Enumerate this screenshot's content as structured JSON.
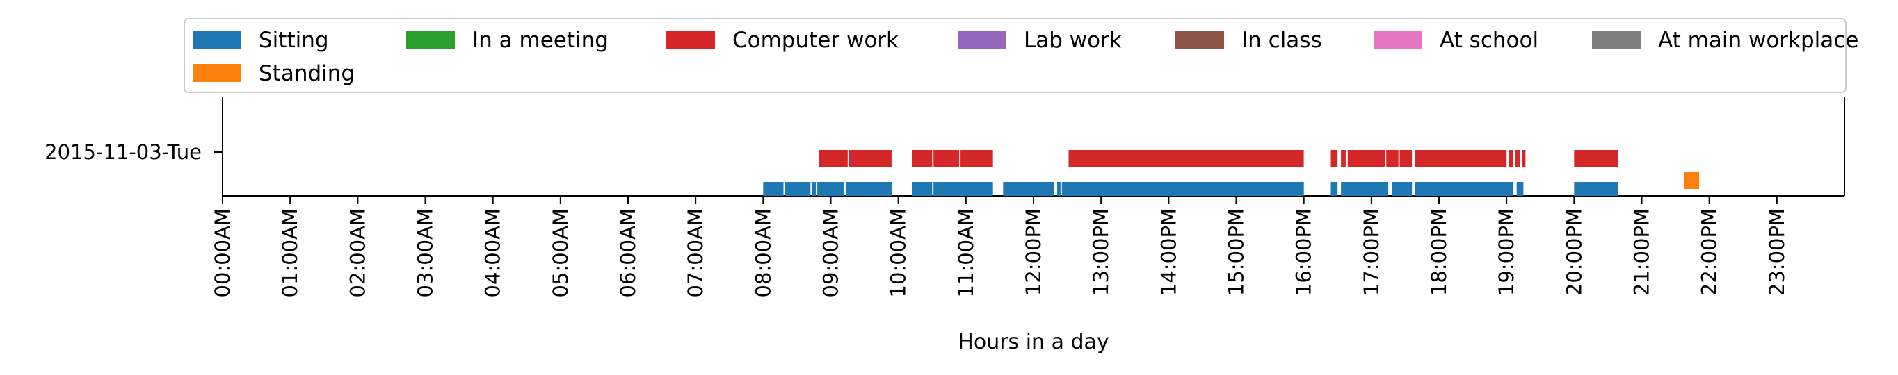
{
  "chart_data": {
    "type": "timeline",
    "title": "",
    "xlabel": "Hours in a day",
    "ylabel": "",
    "xlim": [
      0,
      24
    ],
    "x_ticks": [
      {
        "value": 0,
        "label": "00:00AM"
      },
      {
        "value": 1,
        "label": "01:00AM"
      },
      {
        "value": 2,
        "label": "02:00AM"
      },
      {
        "value": 3,
        "label": "03:00AM"
      },
      {
        "value": 4,
        "label": "04:00AM"
      },
      {
        "value": 5,
        "label": "05:00AM"
      },
      {
        "value": 6,
        "label": "06:00AM"
      },
      {
        "value": 7,
        "label": "07:00AM"
      },
      {
        "value": 8,
        "label": "08:00AM"
      },
      {
        "value": 9,
        "label": "09:00AM"
      },
      {
        "value": 10,
        "label": "10:00AM"
      },
      {
        "value": 11,
        "label": "11:00AM"
      },
      {
        "value": 12,
        "label": "12:00PM"
      },
      {
        "value": 13,
        "label": "13:00PM"
      },
      {
        "value": 14,
        "label": "14:00PM"
      },
      {
        "value": 15,
        "label": "15:00PM"
      },
      {
        "value": 16,
        "label": "16:00PM"
      },
      {
        "value": 17,
        "label": "17:00PM"
      },
      {
        "value": 18,
        "label": "18:00PM"
      },
      {
        "value": 19,
        "label": "19:00PM"
      },
      {
        "value": 20,
        "label": "20:00PM"
      },
      {
        "value": 21,
        "label": "21:00PM"
      },
      {
        "value": 22,
        "label": "22:00PM"
      },
      {
        "value": 23,
        "label": "23:00PM"
      }
    ],
    "y_ticks": [
      "2015-11-03-Tue"
    ],
    "legend_position": "top",
    "legend": [
      {
        "name": "Sitting",
        "color": "#1f77b4"
      },
      {
        "name": "In a meeting",
        "color": "#2ca02c"
      },
      {
        "name": "Computer work",
        "color": "#d62728"
      },
      {
        "name": "Lab work",
        "color": "#9467bd"
      },
      {
        "name": "In class",
        "color": "#8c564b"
      },
      {
        "name": "At school",
        "color": "#e377c2"
      },
      {
        "name": "At main workplace",
        "color": "#7f7f7f"
      },
      {
        "name": "Standing",
        "color": "#ff7f0e"
      }
    ],
    "series": [
      {
        "name": "Sitting",
        "color": "#1f77b4",
        "intervals": [
          [
            8.0,
            8.3
          ],
          [
            8.32,
            8.7
          ],
          [
            8.72,
            8.78
          ],
          [
            8.8,
            9.2
          ],
          [
            9.22,
            9.9
          ],
          [
            10.2,
            10.5
          ],
          [
            10.52,
            11.4
          ],
          [
            11.55,
            12.3
          ],
          [
            12.35,
            12.4
          ],
          [
            12.42,
            16.0
          ],
          [
            16.4,
            16.5
          ],
          [
            16.55,
            17.25
          ],
          [
            17.3,
            17.6
          ],
          [
            17.65,
            19.1
          ],
          [
            19.15,
            19.25
          ],
          [
            20.0,
            20.65
          ]
        ]
      },
      {
        "name": "Computer work",
        "color": "#d62728",
        "intervals": [
          [
            8.83,
            9.25
          ],
          [
            9.27,
            9.9
          ],
          [
            10.2,
            10.5
          ],
          [
            10.52,
            10.9
          ],
          [
            10.92,
            11.4
          ],
          [
            12.52,
            16.0
          ],
          [
            16.4,
            16.5
          ],
          [
            16.55,
            16.62
          ],
          [
            16.65,
            17.2
          ],
          [
            17.22,
            17.4
          ],
          [
            17.42,
            17.6
          ],
          [
            17.65,
            19.0
          ],
          [
            19.03,
            19.1
          ],
          [
            19.13,
            19.2
          ],
          [
            19.23,
            19.28
          ],
          [
            20.0,
            20.65
          ]
        ]
      },
      {
        "name": "Standing",
        "color": "#ff7f0e",
        "intervals": [
          [
            21.63,
            21.85
          ]
        ]
      }
    ]
  }
}
